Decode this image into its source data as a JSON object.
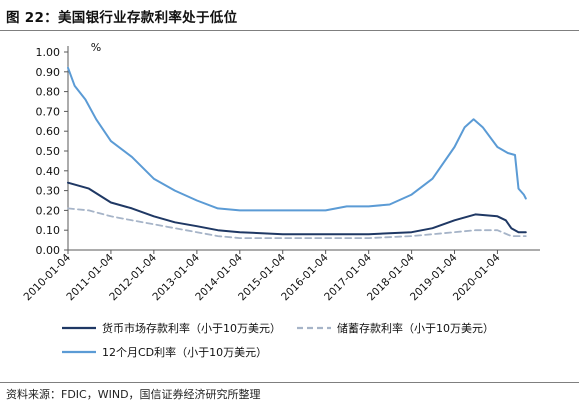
{
  "figure": {
    "title": "图 22：美国银行业存款利率处于低位",
    "source": "资料来源：FDIC，WIND，国信证券经济研究所整理"
  },
  "colors": {
    "money_market": "#1f3864",
    "savings": "#a6b4c8",
    "cd_12m": "#5b9bd5",
    "axis": "#595959",
    "text": "#111111"
  },
  "chart_data": {
    "type": "line",
    "unit_label": "%",
    "ylim": [
      0,
      1.0
    ],
    "yticks": [
      "0.00",
      "0.10",
      "0.20",
      "0.30",
      "0.40",
      "0.50",
      "0.60",
      "0.70",
      "0.80",
      "0.90",
      "1.00"
    ],
    "xlim": [
      "2010-01-04",
      "2020-12-31"
    ],
    "xticks": [
      "2010-01-04",
      "2011-01-04",
      "2012-01-04",
      "2013-01-04",
      "2014-01-04",
      "2015-01-04",
      "2016-01-04",
      "2017-01-04",
      "2018-01-04",
      "2019-01-04",
      "2020-01-04"
    ],
    "grid": false,
    "legend_position": "bottom",
    "series": [
      {
        "name": "货币市场存款利率（小于10万美元）",
        "color_key": "money_market",
        "style": "solid",
        "points": [
          [
            "2010-01-04",
            0.34
          ],
          [
            "2010-07-01",
            0.31
          ],
          [
            "2011-01-04",
            0.24
          ],
          [
            "2011-07-01",
            0.21
          ],
          [
            "2012-01-04",
            0.17
          ],
          [
            "2012-07-01",
            0.14
          ],
          [
            "2013-01-04",
            0.12
          ],
          [
            "2013-07-01",
            0.1
          ],
          [
            "2014-01-04",
            0.09
          ],
          [
            "2015-01-04",
            0.08
          ],
          [
            "2016-01-04",
            0.08
          ],
          [
            "2017-01-04",
            0.08
          ],
          [
            "2018-01-04",
            0.09
          ],
          [
            "2018-07-01",
            0.11
          ],
          [
            "2019-01-04",
            0.15
          ],
          [
            "2019-07-01",
            0.18
          ],
          [
            "2020-01-04",
            0.17
          ],
          [
            "2020-03-15",
            0.15
          ],
          [
            "2020-05-01",
            0.11
          ],
          [
            "2020-07-01",
            0.09
          ],
          [
            "2020-09-01",
            0.09
          ]
        ]
      },
      {
        "name": "储蓄存款利率（小于10万美元）",
        "color_key": "savings",
        "style": "dashed",
        "points": [
          [
            "2010-01-04",
            0.21
          ],
          [
            "2010-07-01",
            0.2
          ],
          [
            "2011-01-04",
            0.17
          ],
          [
            "2011-07-01",
            0.15
          ],
          [
            "2012-01-04",
            0.13
          ],
          [
            "2012-07-01",
            0.11
          ],
          [
            "2013-01-04",
            0.09
          ],
          [
            "2013-07-01",
            0.07
          ],
          [
            "2014-01-04",
            0.06
          ],
          [
            "2015-01-04",
            0.06
          ],
          [
            "2016-01-04",
            0.06
          ],
          [
            "2017-01-04",
            0.06
          ],
          [
            "2018-01-04",
            0.07
          ],
          [
            "2018-07-01",
            0.08
          ],
          [
            "2019-01-04",
            0.09
          ],
          [
            "2019-07-01",
            0.1
          ],
          [
            "2020-01-04",
            0.1
          ],
          [
            "2020-05-01",
            0.07
          ],
          [
            "2020-09-01",
            0.07
          ]
        ]
      },
      {
        "name": "12个月CD利率（小于10万美元）",
        "color_key": "cd_12m",
        "style": "solid",
        "points": [
          [
            "2010-01-04",
            0.92
          ],
          [
            "2010-03-01",
            0.83
          ],
          [
            "2010-06-01",
            0.76
          ],
          [
            "2010-09-01",
            0.66
          ],
          [
            "2011-01-04",
            0.55
          ],
          [
            "2011-07-01",
            0.47
          ],
          [
            "2012-01-04",
            0.36
          ],
          [
            "2012-07-01",
            0.3
          ],
          [
            "2013-01-04",
            0.25
          ],
          [
            "2013-07-01",
            0.21
          ],
          [
            "2014-01-04",
            0.2
          ],
          [
            "2015-01-04",
            0.2
          ],
          [
            "2016-01-04",
            0.2
          ],
          [
            "2016-07-01",
            0.22
          ],
          [
            "2017-01-04",
            0.22
          ],
          [
            "2017-07-01",
            0.23
          ],
          [
            "2018-01-04",
            0.28
          ],
          [
            "2018-07-01",
            0.36
          ],
          [
            "2019-01-04",
            0.52
          ],
          [
            "2019-04-01",
            0.62
          ],
          [
            "2019-06-15",
            0.66
          ],
          [
            "2019-09-01",
            0.62
          ],
          [
            "2020-01-04",
            0.52
          ],
          [
            "2020-04-01",
            0.49
          ],
          [
            "2020-06-01",
            0.48
          ],
          [
            "2020-07-01",
            0.31
          ],
          [
            "2020-08-15",
            0.28
          ],
          [
            "2020-09-01",
            0.26
          ]
        ]
      }
    ]
  }
}
